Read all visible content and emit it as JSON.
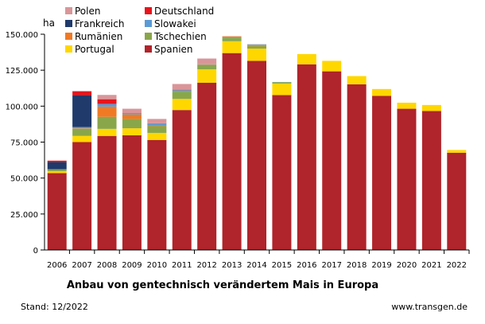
{
  "chart_data": {
    "type": "bar",
    "stacked": true,
    "title": "Anbau von gentechnisch verändertem Mais in Europa",
    "ylabel": "ha",
    "xlabel": "",
    "ylim": [
      0,
      150000
    ],
    "yticks": [
      0,
      25000,
      50000,
      75000,
      100000,
      125000,
      150000
    ],
    "ytick_labels": [
      "0",
      "25.000",
      "50.000",
      "75.000",
      "100.000",
      "125.000",
      "150.000"
    ],
    "grid": false,
    "legend_position": "top-left",
    "categories": [
      "2006",
      "2007",
      "2008",
      "2009",
      "2010",
      "2011",
      "2012",
      "2013",
      "2014",
      "2015",
      "2016",
      "2017",
      "2018",
      "2019",
      "2020",
      "2021",
      "2022"
    ],
    "series": [
      {
        "name": "Spanien",
        "color": "#b0242b",
        "values": [
          53500,
          75000,
          79300,
          79700,
          76500,
          97300,
          116300,
          136900,
          131500,
          107700,
          129100,
          124200,
          115200,
          107100,
          98200,
          96600,
          67600
        ]
      },
      {
        "name": "Portugal",
        "color": "#ffd700",
        "values": [
          1300,
          4300,
          4900,
          4900,
          4900,
          7700,
          9300,
          8200,
          8500,
          8000,
          7100,
          7300,
          5700,
          4800,
          4200,
          4200,
          1900
        ]
      },
      {
        "name": "Tschechien",
        "color": "#8aa64a",
        "values": [
          1300,
          5000,
          8400,
          6500,
          4700,
          5100,
          3100,
          2600,
          1800,
          1000,
          0,
          0,
          0,
          0,
          0,
          0,
          0
        ]
      },
      {
        "name": "Rumänien",
        "color": "#f07a24",
        "values": [
          0,
          300,
          7100,
          3200,
          800,
          600,
          200,
          800,
          800,
          2,
          0,
          0,
          0,
          0,
          0,
          0,
          0
        ]
      },
      {
        "name": "Slowakei",
        "color": "#5b9bd5",
        "values": [
          30,
          900,
          1900,
          900,
          1200,
          800,
          200,
          100,
          400,
          100,
          0,
          0,
          0,
          0,
          0,
          0,
          0
        ]
      },
      {
        "name": "Frankreich",
        "color": "#1f3a6b",
        "values": [
          5000,
          22100,
          0,
          0,
          0,
          0,
          0,
          0,
          0,
          0,
          0,
          0,
          0,
          0,
          0,
          0,
          0
        ]
      },
      {
        "name": "Deutschland",
        "color": "#e8141b",
        "values": [
          950,
          2700,
          3200,
          0,
          0,
          0,
          0,
          0,
          0,
          0,
          0,
          0,
          0,
          0,
          0,
          0,
          0
        ]
      },
      {
        "name": "Polen",
        "color": "#d9969a",
        "values": [
          100,
          300,
          3000,
          3000,
          3000,
          3900,
          4000,
          0,
          0,
          0,
          0,
          0,
          0,
          0,
          0,
          0,
          0
        ]
      }
    ],
    "legend_order": [
      "Polen",
      "Deutschland",
      "Frankreich",
      "Slowakei",
      "Rumänien",
      "Tschechien",
      "Portugal",
      "Spanien"
    ]
  },
  "footer": {
    "stand": "Stand: 12/2022",
    "source": "www.transgen.de"
  }
}
